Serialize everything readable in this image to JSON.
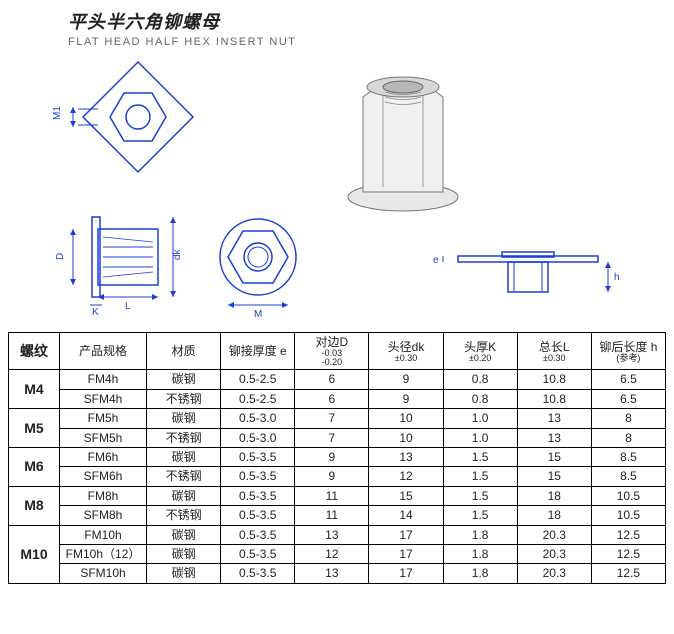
{
  "title": {
    "cn": "平头半六角铆螺母",
    "en": "FLAT HEAD HALF HEX INSERT NUT"
  },
  "diagram": {
    "labels": {
      "M1": "M1",
      "D": "D",
      "dk": "dk",
      "K": "K",
      "L": "L",
      "M": "M",
      "e": "e",
      "h": "h"
    },
    "stroke_color": "#1a3fd6",
    "render_fill": "#e8e8e8",
    "render_stroke": "#777777"
  },
  "table": {
    "headers": {
      "thread": "螺纹",
      "spec": "产品规格",
      "material": "材质",
      "rivet_thickness": "铆接厚度 e",
      "across_flats": "对边D",
      "across_flats_tol_a": "-0.03",
      "across_flats_tol_b": "-0.20",
      "head_dia": "头径dk",
      "head_dia_tol": "±0.30",
      "head_thick": "头厚K",
      "head_thick_tol": "±0.20",
      "total_len": "总长L",
      "total_len_tol": "±0.30",
      "after_rivet": "铆后长度 h",
      "after_rivet_note": "(参考)"
    },
    "groups": [
      {
        "thread": "M4",
        "rows": [
          {
            "spec": "FM4h",
            "material": "碳钢",
            "e": "0.5-2.5",
            "D": "6",
            "dk": "9",
            "K": "0.8",
            "L": "10.8",
            "h": "6.5"
          },
          {
            "spec": "SFM4h",
            "material": "不锈钢",
            "e": "0.5-2.5",
            "D": "6",
            "dk": "9",
            "K": "0.8",
            "L": "10.8",
            "h": "6.5"
          }
        ]
      },
      {
        "thread": "M5",
        "rows": [
          {
            "spec": "FM5h",
            "material": "碳钢",
            "e": "0.5-3.0",
            "D": "7",
            "dk": "10",
            "K": "1.0",
            "L": "13",
            "h": "8"
          },
          {
            "spec": "SFM5h",
            "material": "不锈钢",
            "e": "0.5-3.0",
            "D": "7",
            "dk": "10",
            "K": "1.0",
            "L": "13",
            "h": "8"
          }
        ]
      },
      {
        "thread": "M6",
        "rows": [
          {
            "spec": "FM6h",
            "material": "碳钢",
            "e": "0.5-3.5",
            "D": "9",
            "dk": "13",
            "K": "1.5",
            "L": "15",
            "h": "8.5"
          },
          {
            "spec": "SFM6h",
            "material": "不锈钢",
            "e": "0.5-3.5",
            "D": "9",
            "dk": "12",
            "K": "1.5",
            "L": "15",
            "h": "8.5"
          }
        ]
      },
      {
        "thread": "M8",
        "rows": [
          {
            "spec": "FM8h",
            "material": "碳钢",
            "e": "0.5-3.5",
            "D": "11",
            "dk": "15",
            "K": "1.5",
            "L": "18",
            "h": "10.5"
          },
          {
            "spec": "SFM8h",
            "material": "不锈钢",
            "e": "0.5-3.5",
            "D": "11",
            "dk": "14",
            "K": "1.5",
            "L": "18",
            "h": "10.5"
          }
        ]
      },
      {
        "thread": "M10",
        "rows": [
          {
            "spec": "FM10h",
            "material": "碳钢",
            "e": "0.5-3.5",
            "D": "13",
            "dk": "17",
            "K": "1.8",
            "L": "20.3",
            "h": "12.5"
          },
          {
            "spec": "FM10h（12）",
            "material": "碳钢",
            "e": "0.5-3.5",
            "D": "12",
            "dk": "17",
            "K": "1.8",
            "L": "20.3",
            "h": "12.5"
          },
          {
            "spec": "SFM10h",
            "material": "碳钢",
            "e": "0.5-3.5",
            "D": "13",
            "dk": "17",
            "K": "1.8",
            "L": "20.3",
            "h": "12.5"
          }
        ]
      }
    ]
  }
}
